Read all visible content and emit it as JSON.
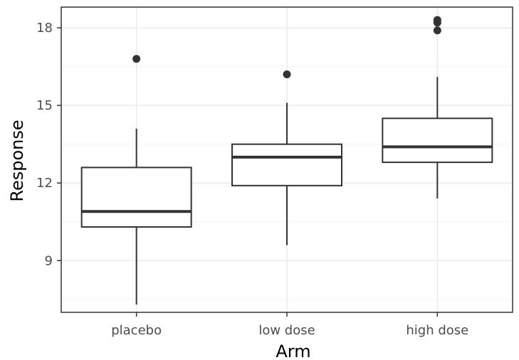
{
  "chart_data": {
    "type": "box",
    "title": "",
    "xlabel": "Arm",
    "ylabel": "Response",
    "categories": [
      "placebo",
      "low dose",
      "high dose"
    ],
    "yticks": [
      9,
      12,
      15,
      18
    ],
    "ylim": [
      7.0,
      18.8
    ],
    "grid": true,
    "boxes": [
      {
        "category": "placebo",
        "min": 7.3,
        "q1": 10.3,
        "median": 10.9,
        "q3": 12.6,
        "max": 14.1,
        "outliers": [
          16.8
        ]
      },
      {
        "category": "low dose",
        "min": 9.6,
        "q1": 11.9,
        "median": 13.0,
        "q3": 13.5,
        "max": 15.1,
        "outliers": [
          16.2
        ]
      },
      {
        "category": "high dose",
        "min": 11.4,
        "q1": 12.8,
        "median": 13.4,
        "q3": 14.5,
        "max": 16.1,
        "outliers": [
          17.9,
          18.2,
          18.3
        ]
      }
    ],
    "colors": {
      "panel_border": "#333333",
      "grid_major": "#ebebeb",
      "grid_minor": "#f3f3f3",
      "box_fill": "#ffffff",
      "box_stroke": "#333333",
      "tick_text": "#4d4d4d",
      "axis_title_text": "#000000"
    }
  }
}
